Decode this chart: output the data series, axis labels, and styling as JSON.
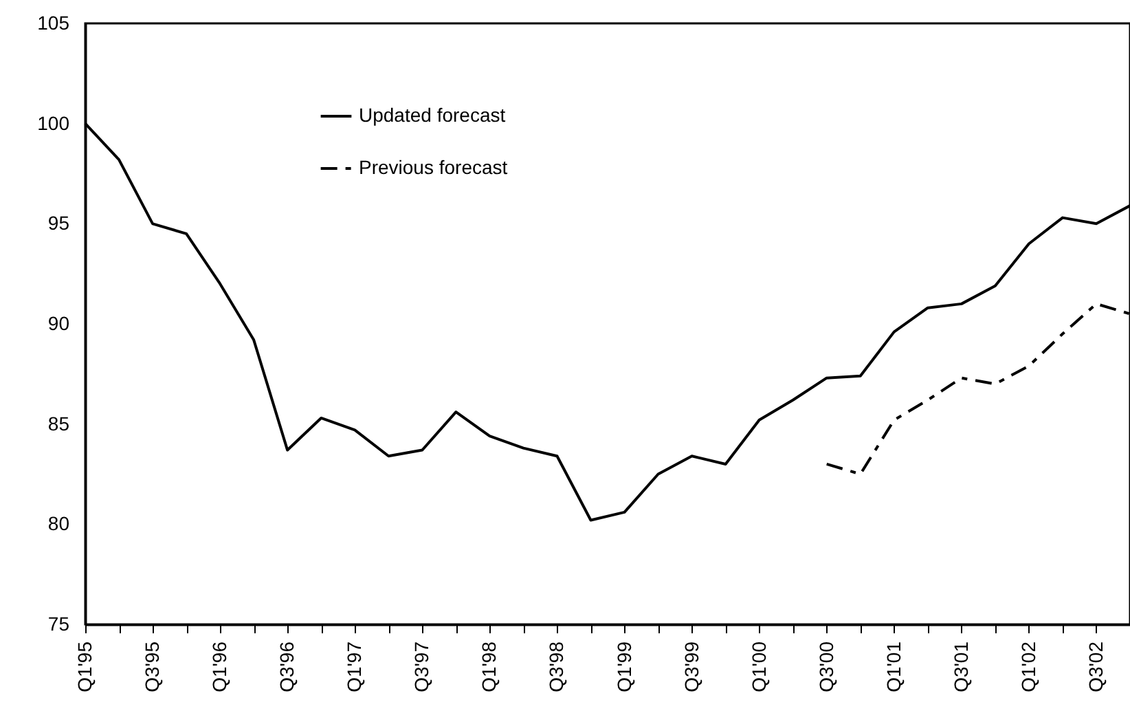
{
  "chart_data": {
    "type": "line",
    "categories": [
      "Q1'95",
      null,
      "Q3'95",
      null,
      "Q1'96",
      null,
      "Q3'96",
      null,
      "Q1'97",
      null,
      "Q3'97",
      null,
      "Q1'98",
      null,
      "Q3'98",
      null,
      "Q1'99",
      null,
      "Q3'99",
      null,
      "Q1'00",
      null,
      "Q3'00",
      null,
      "Q1'01",
      null,
      "Q3'01",
      null,
      "Q1'02",
      null,
      "Q3'02",
      null
    ],
    "series": [
      {
        "name": "Updated forecast",
        "color": "#000000",
        "line_style": "solid",
        "values": [
          100,
          98.2,
          95.0,
          94.5,
          92.0,
          89.2,
          83.7,
          85.3,
          84.7,
          83.4,
          83.7,
          85.6,
          84.4,
          83.8,
          83.4,
          80.2,
          80.6,
          82.5,
          83.4,
          83.0,
          85.2,
          86.2,
          87.3,
          87.4,
          89.6,
          90.8,
          91.0,
          91.9,
          94.0,
          95.3,
          95.0,
          95.9
        ]
      },
      {
        "name": "Previous forecast",
        "color": "#000000",
        "line_style": "dashed",
        "values": [
          null,
          null,
          null,
          null,
          null,
          null,
          null,
          null,
          null,
          null,
          null,
          null,
          null,
          null,
          null,
          null,
          null,
          null,
          null,
          null,
          null,
          null,
          83.0,
          82.5,
          85.2,
          86.2,
          87.3,
          87.0,
          87.9,
          89.5,
          91.0,
          90.5
        ]
      }
    ],
    "ylim": [
      75,
      105
    ],
    "yticks": [
      75,
      80,
      85,
      90,
      95,
      100,
      105
    ],
    "grid": false,
    "legend": "top left",
    "marker": "none"
  }
}
